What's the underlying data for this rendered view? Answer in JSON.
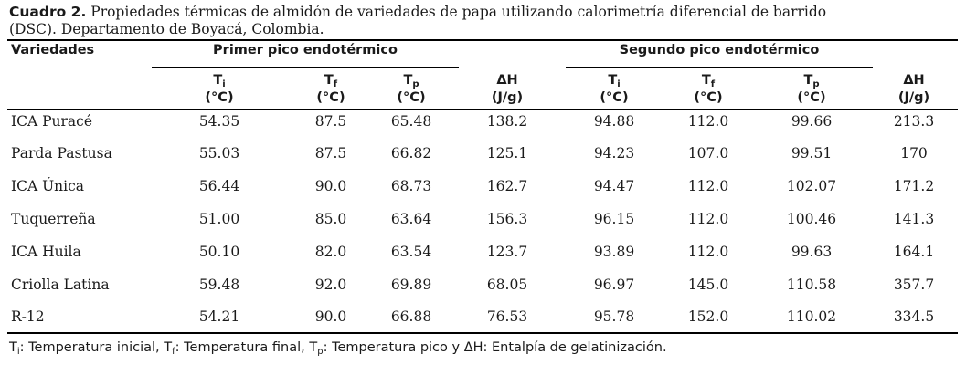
{
  "caption": {
    "label": "Cuadro 2.",
    "line1": "Propiedades térmicas de almidón de variedades de papa utilizando calorimetría diferencial de barrido",
    "line2": "(DSC). Departamento de Boyacá, Colombia."
  },
  "headers": {
    "variedades": "Variedades",
    "group1": "Primer pico endotérmico",
    "group2": "Segundo pico endotérmico",
    "Ti": "T",
    "Ti_sub": "i",
    "Tf": "T",
    "Tf_sub": "f",
    "Tp": "T",
    "Tp_sub": "p",
    "dH": "ΔH",
    "unit_temp": "(°C)",
    "unit_energy": "(J/g)"
  },
  "rows": [
    [
      "ICA Puracé",
      "54.35",
      "87.5",
      "65.48",
      "138.2",
      "94.88",
      "112.0",
      "99.66",
      "213.3"
    ],
    [
      "Parda Pastusa",
      "55.03",
      "87.5",
      "66.82",
      "125.1",
      "94.23",
      "107.0",
      "99.51",
      "170"
    ],
    [
      "ICA Única",
      "56.44",
      "90.0",
      "68.73",
      "162.7",
      "94.47",
      "112.0",
      "102.07",
      "171.2"
    ],
    [
      "Tuquerreña",
      "51.00",
      "85.0",
      "63.64",
      "156.3",
      "96.15",
      "112.0",
      "100.46",
      "141.3"
    ],
    [
      "ICA Huila",
      "50.10",
      "82.0",
      "63.54",
      "123.7",
      "93.89",
      "112.0",
      "99.63",
      "164.1"
    ],
    [
      "Criolla Latina",
      "59.48",
      "92.0",
      "69.89",
      "68.05",
      "96.97",
      "145.0",
      "110.58",
      "357.7"
    ],
    [
      "R-12",
      "54.21",
      "90.0",
      "66.88",
      "76.53",
      "95.78",
      "152.0",
      "110.02",
      "334.5"
    ]
  ],
  "footnote": {
    "t1": "T",
    "s1": "i",
    "p1": ": Temperatura inicial, T",
    "s2": "f",
    "p2": ": Temperatura final, T",
    "s3": "p",
    "p3": ": Temperatura pico y ΔH: Entalpía de gelatinización."
  }
}
